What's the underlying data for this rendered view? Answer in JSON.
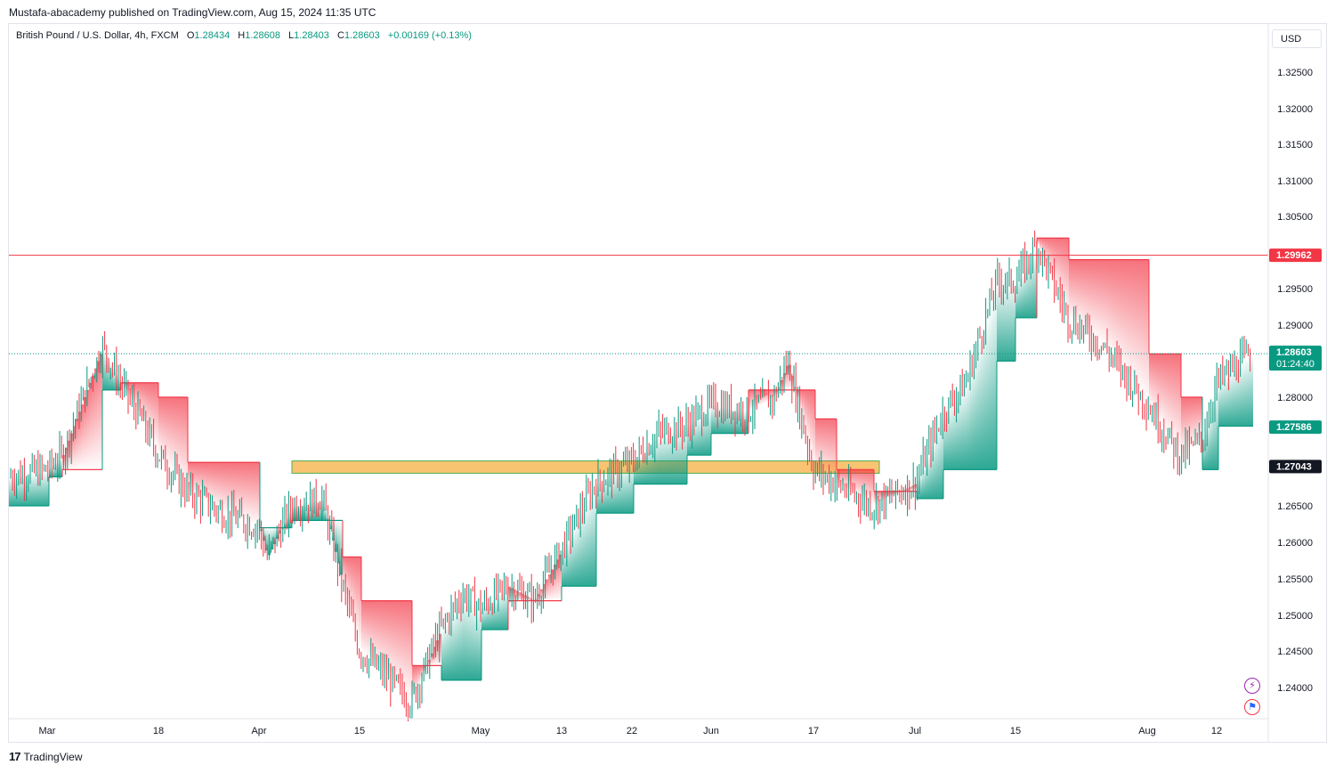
{
  "publish_line": "Mustafa-abacademy published on TradingView.com, Aug 15, 2024 11:35 UTC",
  "legend": {
    "symbol": "British Pound / U.S. Dollar, 4h, FXCM",
    "open_label": "O",
    "open": "1.28434",
    "high_label": "H",
    "high": "1.28608",
    "low_label": "L",
    "low": "1.28403",
    "close_label": "C",
    "close": "1.28603",
    "change": "+0.00169 (+0.13%)"
  },
  "currency_button": "USD",
  "footer_brand": "TradingView",
  "footer_logo": "17",
  "icons": {
    "lightning": "lightning-icon",
    "flag": "us-uk-flag-icon"
  },
  "colors": {
    "up": "#089981",
    "down": "#f23645",
    "zone": "#f5b041",
    "resistance": "#f23645"
  },
  "chart_data": {
    "type": "candlestick",
    "symbol": "GBPUSD",
    "timeframe": "4h",
    "y_ticks": [
      "1.32500",
      "1.32000",
      "1.31500",
      "1.31000",
      "1.30500",
      "1.29500",
      "1.29000",
      "1.28000",
      "1.26500",
      "1.26000",
      "1.25500",
      "1.25000",
      "1.24500",
      "1.24000"
    ],
    "ylim": [
      1.2365,
      1.3335
    ],
    "x_ticks": [
      "Mar",
      "18",
      "Apr",
      "15",
      "May",
      "13",
      "22",
      "Jun",
      "17",
      "Jul",
      "15",
      "Aug",
      "12"
    ],
    "close_path": [
      [
        "Mar",
        1.27
      ],
      [
        "Mar 5",
        1.272
      ],
      [
        "Mar 8",
        1.287
      ],
      [
        "Mar 11",
        1.282
      ],
      [
        "Mar 14",
        1.277
      ],
      [
        "Mar 18",
        1.272
      ],
      [
        "Mar 21",
        1.267
      ],
      [
        "Mar 26",
        1.264
      ],
      [
        "Apr",
        1.262
      ],
      [
        "Apr 3",
        1.258
      ],
      [
        "Apr 5",
        1.265
      ],
      [
        "Apr 9",
        1.266
      ],
      [
        "Apr 12",
        1.254
      ],
      [
        "15",
        1.245
      ],
      [
        "Apr 19",
        1.242
      ],
      [
        "Apr 22",
        1.238
      ],
      [
        "Apr 25",
        1.248
      ],
      [
        "Apr 29",
        1.253
      ],
      [
        "May",
        1.251
      ],
      [
        "May 6",
        1.254
      ],
      [
        "May 9",
        1.252
      ],
      [
        "13",
        1.259
      ],
      [
        "May 16",
        1.268
      ],
      [
        "22",
        1.271
      ],
      [
        "May 24",
        1.275
      ],
      [
        "May 28",
        1.276
      ],
      [
        "Jun",
        1.279
      ],
      [
        "Jun 6",
        1.278
      ],
      [
        "Jun 11",
        1.28
      ],
      [
        "Jun 12",
        1.285
      ],
      [
        "17",
        1.27
      ],
      [
        "Jun 20",
        1.268
      ],
      [
        "Jun 25",
        1.265
      ],
      [
        "Jul",
        1.268
      ],
      [
        "Jul 5",
        1.278
      ],
      [
        "Jul 9",
        1.282
      ],
      [
        "Jul 12",
        1.296
      ],
      [
        "15",
        1.296
      ],
      [
        "Jul 17",
        1.301
      ],
      [
        "Jul 22",
        1.291
      ],
      [
        "Jul 26",
        1.287
      ],
      [
        "Aug",
        1.279
      ],
      [
        "Aug 5",
        1.272
      ],
      [
        "Aug 8",
        1.274
      ],
      [
        "12",
        1.282
      ],
      [
        "Aug 15",
        1.28603
      ]
    ],
    "trailing_stop_line": [
      [
        "Mar",
        1.269,
        "up"
      ],
      [
        "Mar 5",
        1.27,
        "down"
      ],
      [
        "Mar 8",
        1.281,
        "up"
      ],
      [
        "Mar 11",
        1.282,
        "down"
      ],
      [
        "Mar 18",
        1.28,
        "down"
      ],
      [
        "Mar 21",
        1.271,
        "down"
      ],
      [
        "Apr",
        1.262,
        "up"
      ],
      [
        "Apr 5",
        1.263,
        "up"
      ],
      [
        "Apr 12",
        1.258,
        "down"
      ],
      [
        "15",
        1.252,
        "down"
      ],
      [
        "Apr 22",
        1.243,
        "down"
      ],
      [
        "Apr 25",
        1.241,
        "up"
      ],
      [
        "May",
        1.248,
        "up"
      ],
      [
        "May 6",
        1.252,
        "down"
      ],
      [
        "13",
        1.254,
        "up"
      ],
      [
        "May 16",
        1.264,
        "up"
      ],
      [
        "22",
        1.268,
        "up"
      ],
      [
        "May 28",
        1.272,
        "up"
      ],
      [
        "Jun",
        1.275,
        "up"
      ],
      [
        "Jun 6",
        1.281,
        "down"
      ],
      [
        "17",
        1.277,
        "down"
      ],
      [
        "Jun 20",
        1.27,
        "down"
      ],
      [
        "Jun 25",
        1.267,
        "down"
      ],
      [
        "Jul",
        1.266,
        "up"
      ],
      [
        "Jul 5",
        1.27,
        "up"
      ],
      [
        "Jul 12",
        1.285,
        "up"
      ],
      [
        "15",
        1.291,
        "up"
      ],
      [
        "Jul 17",
        1.302,
        "down"
      ],
      [
        "Jul 22",
        1.299,
        "down"
      ],
      [
        "Aug",
        1.286,
        "down"
      ],
      [
        "Aug 5",
        1.28,
        "down"
      ],
      [
        "Aug 8",
        1.27,
        "up"
      ],
      [
        "12",
        1.276,
        "up"
      ],
      [
        "Aug 15",
        1.276,
        "up"
      ]
    ],
    "horizontal_line": {
      "value": 1.29962,
      "label": "1.29962",
      "color": "#f23645"
    },
    "zone": {
      "from": 1.2695,
      "to": 1.2712,
      "start": "Apr 5",
      "end": "Jun 27",
      "color": "#f5b041"
    },
    "price_tags": [
      {
        "label": "1.29962",
        "value": 1.29962,
        "color": "#f23645"
      },
      {
        "label": "1.28603",
        "sub": "01:24:40",
        "value": 1.28603,
        "color": "#089981"
      },
      {
        "label": "1.27586",
        "value": 1.27586,
        "color": "#089981"
      },
      {
        "label": "1.27043",
        "value": 1.27043,
        "color": "#131722"
      }
    ],
    "current_price_line": 1.28603
  }
}
